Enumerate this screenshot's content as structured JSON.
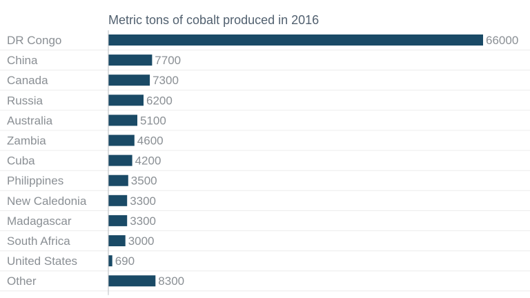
{
  "chart_data": {
    "type": "bar",
    "orientation": "horizontal",
    "title": "Metric tons of cobalt produced in 2016",
    "xlabel": "",
    "ylabel": "",
    "categories": [
      "DR Congo",
      "China",
      "Canada",
      "Russia",
      "Australia",
      "Zambia",
      "Cuba",
      "Philippines",
      "New Caledonia",
      "Madagascar",
      "South Africa",
      "United States",
      "Other"
    ],
    "values": [
      66000,
      7700,
      7300,
      6200,
      5100,
      4600,
      4200,
      3500,
      3300,
      3300,
      3000,
      690,
      8300
    ],
    "xlim": [
      0,
      66000
    ],
    "bar_color": "#1a4a66",
    "grid": true,
    "legend": "none"
  }
}
